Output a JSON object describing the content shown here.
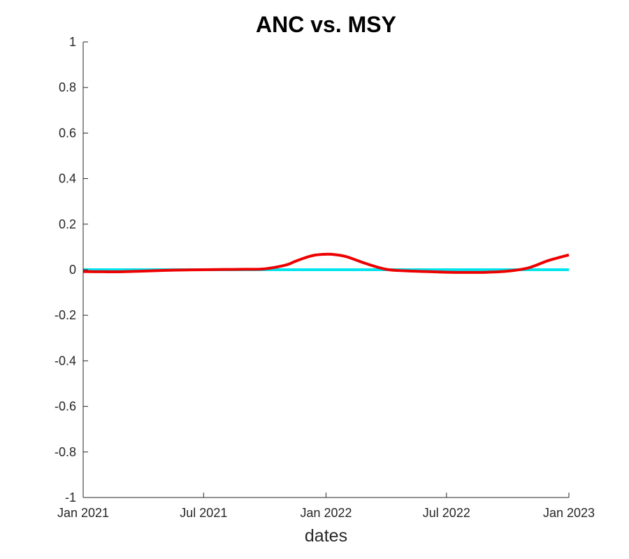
{
  "chart_data": {
    "type": "line",
    "title": "ANC vs. MSY",
    "xlabel": "dates",
    "ylabel": "",
    "xlim": [
      "2021-01-01",
      "2023-01-01"
    ],
    "ylim": [
      -1,
      1
    ],
    "x_ticks": [
      {
        "date": "2021-01-01",
        "label": "Jan 2021"
      },
      {
        "date": "2021-07-01",
        "label": "Jul 2021"
      },
      {
        "date": "2022-01-01",
        "label": "Jan 2022"
      },
      {
        "date": "2022-07-01",
        "label": "Jul 2022"
      },
      {
        "date": "2023-01-01",
        "label": "Jan 2023"
      }
    ],
    "y_ticks": [
      {
        "value": 1,
        "label": "1"
      },
      {
        "value": 0.8,
        "label": "0.8"
      },
      {
        "value": 0.6,
        "label": "0.6"
      },
      {
        "value": 0.4,
        "label": "0.4"
      },
      {
        "value": 0.2,
        "label": "0.2"
      },
      {
        "value": 0,
        "label": "0"
      },
      {
        "value": -0.2,
        "label": "-0.2"
      },
      {
        "value": -0.4,
        "label": "-0.4"
      },
      {
        "value": -0.6,
        "label": "-0.6"
      },
      {
        "value": -0.8,
        "label": "-0.8"
      },
      {
        "value": -1,
        "label": "-1"
      }
    ],
    "grid": false,
    "legend": "none",
    "series": [
      {
        "color": "#00e5ee",
        "x": [
          "2021-01-01",
          "2023-01-01"
        ],
        "y": [
          0,
          0
        ]
      },
      {
        "color": "#ee0000",
        "x": [
          "2021-01-01",
          "2021-02-01",
          "2021-03-01",
          "2021-04-01",
          "2021-05-01",
          "2021-06-01",
          "2021-07-01",
          "2021-08-01",
          "2021-09-01",
          "2021-10-01",
          "2021-11-01",
          "2021-11-15",
          "2021-12-01",
          "2021-12-15",
          "2022-01-01",
          "2022-01-15",
          "2022-02-01",
          "2022-03-01",
          "2022-04-01",
          "2022-05-01",
          "2022-06-01",
          "2022-07-01",
          "2022-08-01",
          "2022-09-01",
          "2022-10-01",
          "2022-11-01",
          "2022-12-01",
          "2023-01-01"
        ],
        "y": [
          -0.008,
          -0.009,
          -0.009,
          -0.006,
          -0.003,
          -0.001,
          0.0,
          0.001,
          0.002,
          0.004,
          0.02,
          0.036,
          0.053,
          0.064,
          0.068,
          0.066,
          0.057,
          0.028,
          0.002,
          -0.005,
          -0.008,
          -0.011,
          -0.012,
          -0.011,
          -0.006,
          0.008,
          0.04,
          0.065
        ]
      }
    ]
  }
}
